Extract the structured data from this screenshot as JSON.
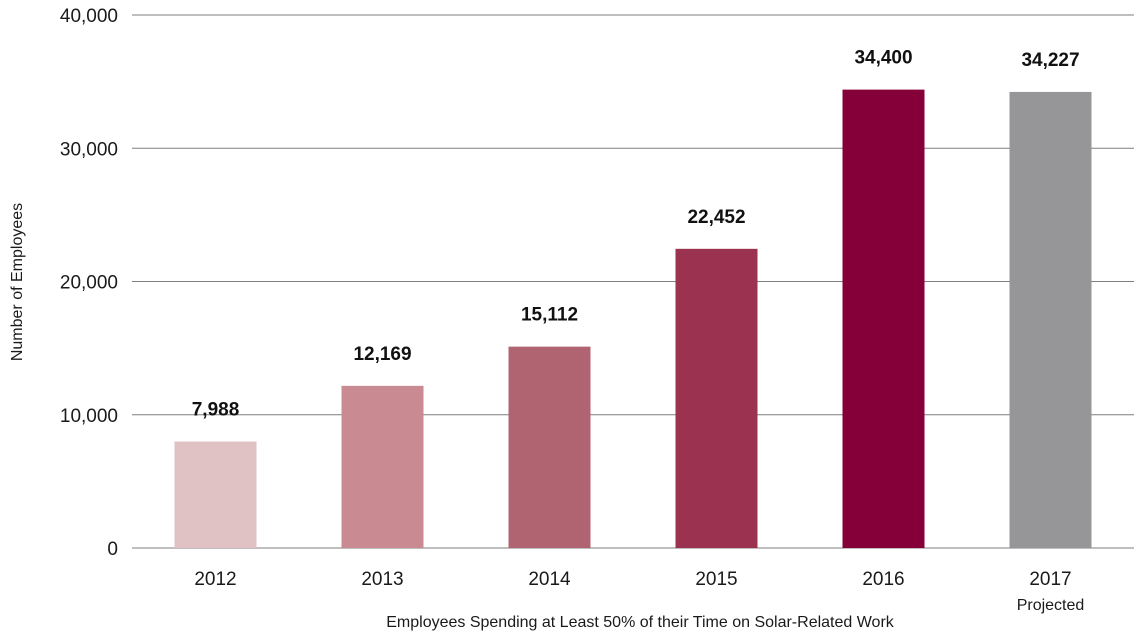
{
  "chart_data": {
    "type": "bar",
    "title": "",
    "xlabel": "Employees Spending at Least 50% of their Time on Solar-Related Work",
    "ylabel": "Number of Employees",
    "ylim": [
      0,
      40000
    ],
    "yticks": [
      "0",
      "10,000",
      "20,000",
      "30,000",
      "40,000"
    ],
    "ytick_values": [
      0,
      10000,
      20000,
      30000,
      40000
    ],
    "grid": true,
    "categories": [
      "2012",
      "2013",
      "2014",
      "2015",
      "2016",
      "2017"
    ],
    "category_sublabels": [
      "",
      "",
      "",
      "",
      "",
      "Projected"
    ],
    "values": [
      7988,
      12169,
      15112,
      22452,
      34400,
      34227
    ],
    "value_labels": [
      "7,988",
      "12,169",
      "15,112",
      "22,452",
      "34,400",
      "34,227"
    ],
    "colors": [
      "#e0c1c4",
      "#c98b91",
      "#b06472",
      "#9b3350",
      "#850038",
      "#969699"
    ]
  }
}
